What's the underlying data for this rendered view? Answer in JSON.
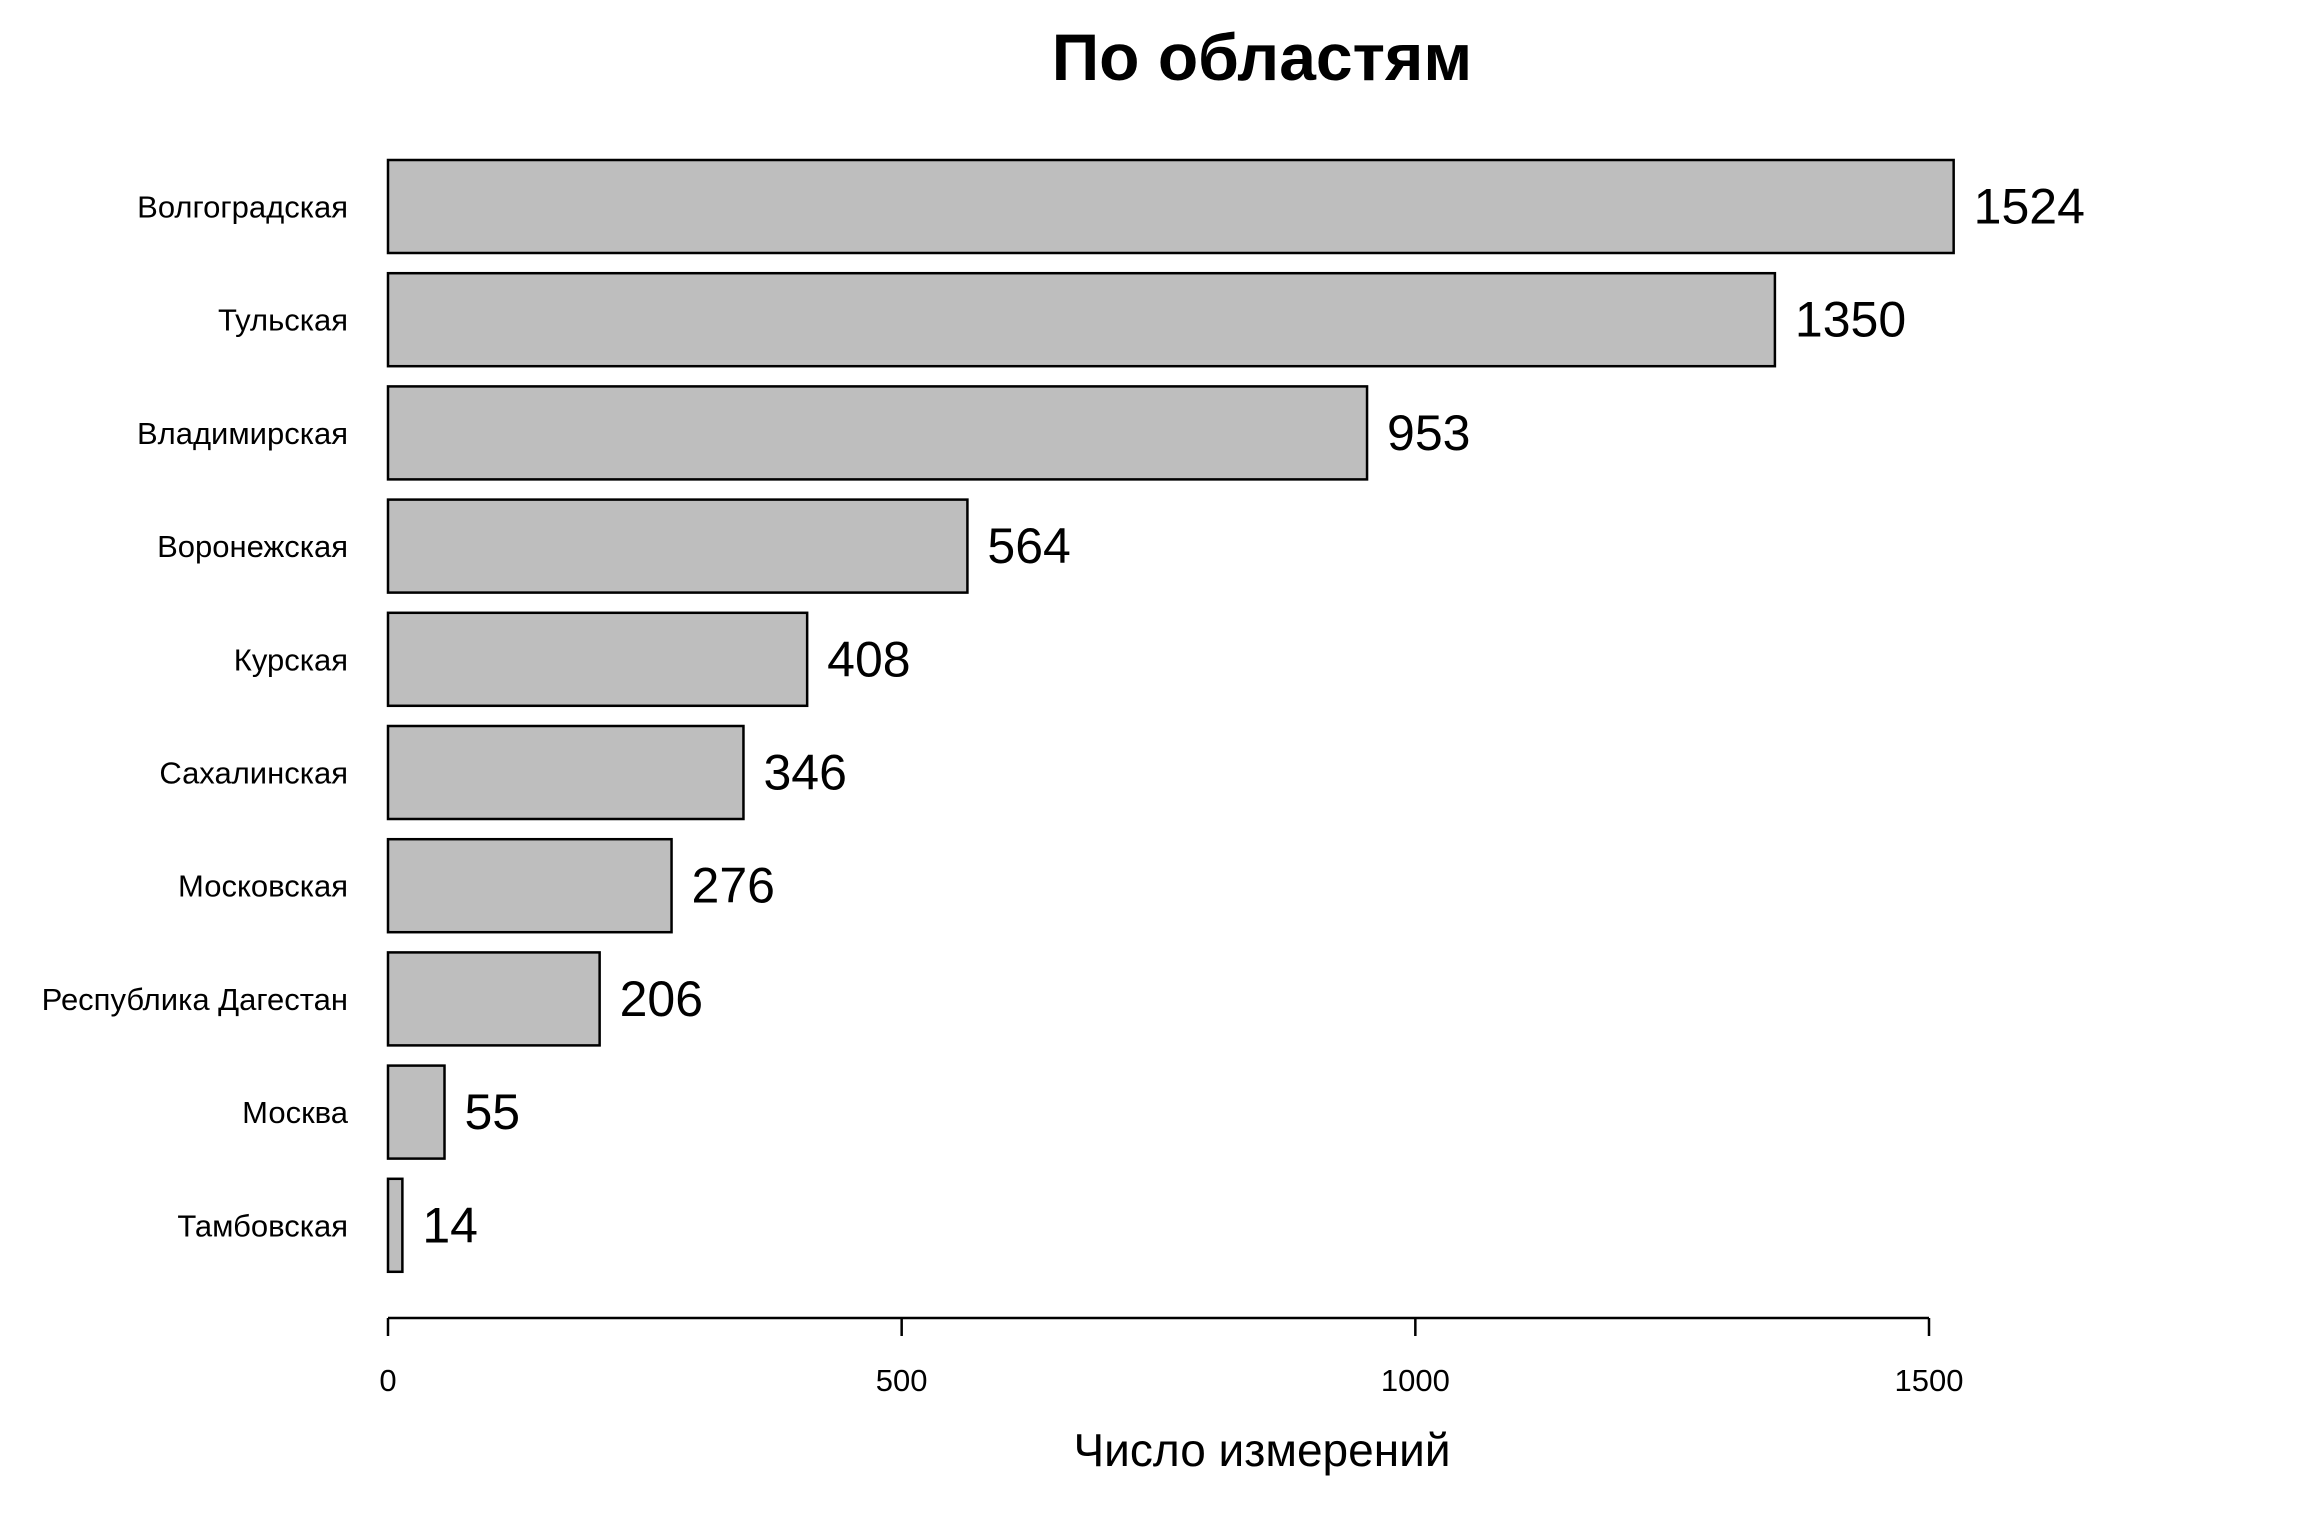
{
  "chart_data": {
    "type": "bar",
    "orientation": "horizontal",
    "title": "По областям",
    "xlabel": "Число измерений",
    "ylabel": "",
    "categories": [
      "Волгоградская",
      "Тульская",
      "Владимирская",
      "Воронежская",
      "Курская",
      "Сахалинская",
      "Московская",
      "Республика Дагестан",
      "Москва",
      "Тамбовская"
    ],
    "values": [
      1524,
      1350,
      953,
      564,
      408,
      346,
      276,
      206,
      55,
      14
    ],
    "data_labels": [
      "1524",
      "1350",
      "953",
      "564",
      "408",
      "346",
      "276",
      "206",
      "55",
      "14"
    ],
    "xlim": [
      0,
      1500
    ],
    "xticks": [
      0,
      500,
      1000,
      1500
    ],
    "xtick_labels": [
      "0",
      "500",
      "1000",
      "1500"
    ],
    "bar_color": "#bebebe",
    "edge_color": "#000000",
    "grid": false,
    "legend": "none"
  }
}
